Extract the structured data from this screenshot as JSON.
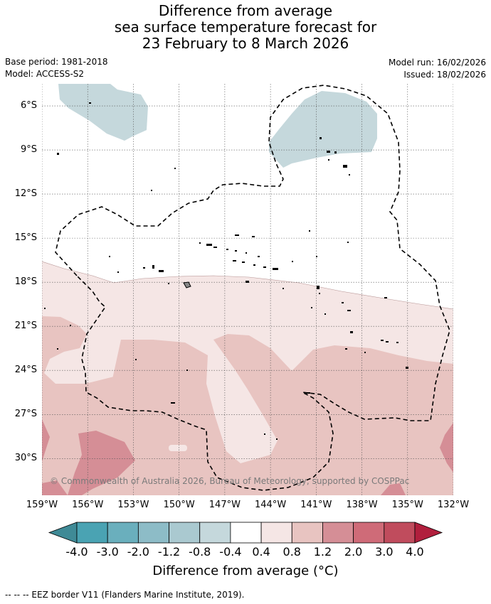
{
  "title": {
    "line1": "Difference from average",
    "line2": "sea surface temperature forecast for",
    "line3": "23 February to 8 March 2026"
  },
  "meta": {
    "base_period": "Base period: 1981-2018",
    "model": "Model: ACCESS-S2",
    "model_run": "Model run: 16/02/2026",
    "issued": "Issued: 18/02/2026"
  },
  "map": {
    "credit": "© Commonwealth of Australia 2026, Bureau of Meteorology, supported by COSPPac",
    "lat_labels": [
      "6°S",
      "9°S",
      "12°S",
      "15°S",
      "18°S",
      "21°S",
      "24°S",
      "27°S",
      "30°S"
    ],
    "lon_labels": [
      "159°W",
      "156°W",
      "153°W",
      "150°W",
      "147°W",
      "144°W",
      "141°W",
      "138°W",
      "135°W",
      "132°W"
    ],
    "lat_range": [
      -32.5,
      -4.5
    ],
    "lon_range": [
      -159,
      -132
    ]
  },
  "colorbar": {
    "tick_labels": [
      "-4.0",
      "-3.0",
      "-2.0",
      "-1.2",
      "-0.8",
      "-0.4",
      "0.4",
      "0.8",
      "1.2",
      "2.0",
      "3.0",
      "4.0"
    ],
    "colors": {
      "below": "#3f8a96",
      "bins": [
        "#4aa3b3",
        "#6aafbd",
        "#8dbcc7",
        "#aac9d0",
        "#c5d8dc",
        "#ffffff",
        "#f5e6e5",
        "#e8c4c1",
        "#d58e96",
        "#cf6b78",
        "#c04c5d"
      ],
      "above": "#b11f3d"
    },
    "title": "Difference from average (°C)"
  },
  "footer": "-- -- -- EEZ border V11 (Flanders Marine Institute, 2019)."
}
